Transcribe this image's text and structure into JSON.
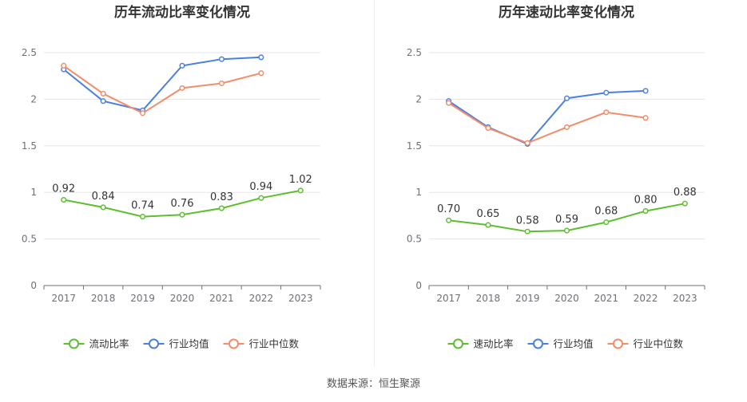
{
  "source_text": "数据来源：恒生聚源",
  "chart_data": [
    {
      "type": "line",
      "title": "历年流动比率变化情况",
      "categories": [
        "2017",
        "2018",
        "2019",
        "2020",
        "2021",
        "2022",
        "2023"
      ],
      "ylim": [
        0,
        2.5
      ],
      "yticks": [
        "0",
        "0.5",
        "1",
        "1.5",
        "2",
        "2.5"
      ],
      "grid": true,
      "legend_position": "bottom-center",
      "series": [
        {
          "name": "流动比率",
          "color": "#5dbf2f",
          "labels": true,
          "values": [
            0.92,
            0.84,
            0.74,
            0.76,
            0.83,
            0.94,
            1.02
          ],
          "value_labels": [
            "0.92",
            "0.84",
            "0.74",
            "0.76",
            "0.83",
            "0.94",
            "1.02"
          ]
        },
        {
          "name": "行业均值",
          "color": "#4a7fe3",
          "values": [
            2.32,
            1.98,
            1.88,
            2.36,
            2.43,
            2.45,
            null
          ]
        },
        {
          "name": "行业中位数",
          "color": "#f28c6a",
          "values": [
            2.36,
            2.06,
            1.85,
            2.12,
            2.17,
            2.28,
            null
          ]
        }
      ]
    },
    {
      "type": "line",
      "title": "历年速动比率变化情况",
      "categories": [
        "2017",
        "2018",
        "2019",
        "2020",
        "2021",
        "2022",
        "2023"
      ],
      "ylim": [
        0,
        2.5
      ],
      "yticks": [
        "0",
        "0.5",
        "1",
        "1.5",
        "2",
        "2.5"
      ],
      "grid": true,
      "legend_position": "bottom-center",
      "series": [
        {
          "name": "速动比率",
          "color": "#5dbf2f",
          "labels": true,
          "values": [
            0.7,
            0.65,
            0.58,
            0.59,
            0.68,
            0.8,
            0.88
          ],
          "value_labels": [
            "0.70",
            "0.65",
            "0.58",
            "0.59",
            "0.68",
            "0.80",
            "0.88"
          ]
        },
        {
          "name": "行业均值",
          "color": "#4a7fe3",
          "values": [
            1.98,
            1.7,
            1.52,
            2.01,
            2.07,
            2.09,
            null
          ]
        },
        {
          "name": "行业中位数",
          "color": "#f28c6a",
          "values": [
            1.96,
            1.69,
            1.53,
            1.7,
            1.86,
            1.8,
            null
          ]
        }
      ]
    }
  ]
}
